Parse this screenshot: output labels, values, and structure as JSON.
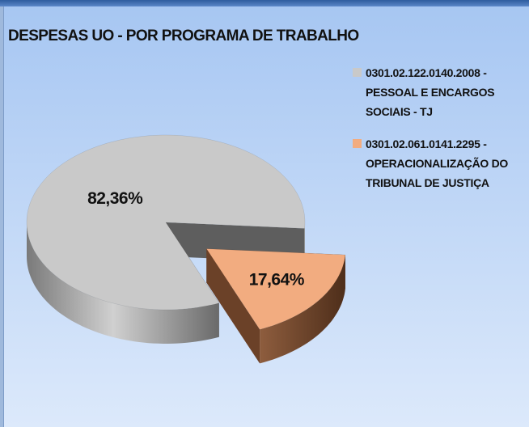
{
  "chart_data": {
    "type": "pie3d",
    "title": "DESPESAS UO - POR PROGRAMA DE TRABALHO",
    "categories": [
      "0301.02.122.0140.2008 - PESSOAL E ENCARGOS SOCIAIS - TJ",
      "0301.02.061.0141.2295 - OPERACIONALIZAÇÃO DO TRIBUNAL DE JUSTIÇA"
    ],
    "values": [
      82.36,
      17.64
    ],
    "value_labels": [
      "82,36%",
      "17,64%"
    ],
    "colors": [
      "#c9c9c9",
      "#f2ac80"
    ],
    "legend": "top-right"
  }
}
